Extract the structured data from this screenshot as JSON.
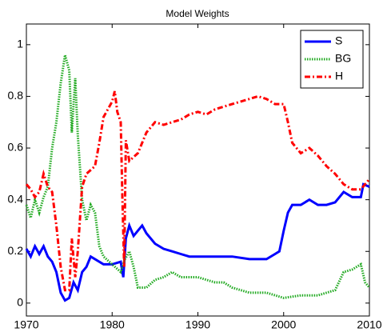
{
  "chart_data": {
    "type": "line",
    "title": "Model Weights",
    "xlim": [
      1970,
      2010
    ],
    "xticks": [
      1970,
      1980,
      1990,
      2000,
      2010
    ],
    "ylim": [
      -0.05,
      1.08
    ],
    "yticks": [
      0,
      0.2,
      0.4,
      0.6,
      0.8,
      1
    ],
    "legend": "northeast",
    "series": [
      {
        "name": "S",
        "color": "#0000ff",
        "style": "solid",
        "x": [
          1970,
          1970.5,
          1971,
          1971.5,
          1972,
          1972.5,
          1973,
          1973.5,
          1974,
          1974.5,
          1975,
          1975.5,
          1976,
          1976.5,
          1977,
          1977.5,
          1978,
          1979,
          1980,
          1981,
          1981.3,
          1981.6,
          1982,
          1982.5,
          1983,
          1983.5,
          1984,
          1985,
          1986,
          1987,
          1988,
          1989,
          1990,
          1992,
          1994,
          1996,
          1998,
          1999,
          1999.5,
          2000,
          2000.5,
          2001,
          2002,
          2003,
          2004,
          2005,
          2006,
          2007,
          2008,
          2009,
          2009.3,
          2010
        ],
        "values": [
          0.21,
          0.18,
          0.22,
          0.19,
          0.22,
          0.18,
          0.16,
          0.12,
          0.04,
          0.01,
          0.02,
          0.08,
          0.05,
          0.12,
          0.14,
          0.18,
          0.17,
          0.15,
          0.15,
          0.16,
          0.1,
          0.25,
          0.3,
          0.26,
          0.28,
          0.3,
          0.27,
          0.23,
          0.21,
          0.2,
          0.19,
          0.18,
          0.18,
          0.18,
          0.18,
          0.17,
          0.17,
          0.19,
          0.2,
          0.28,
          0.35,
          0.38,
          0.38,
          0.4,
          0.38,
          0.38,
          0.39,
          0.43,
          0.41,
          0.41,
          0.46,
          0.45
        ]
      },
      {
        "name": "BG",
        "color": "#22aa22",
        "style": "dotted",
        "x": [
          1970,
          1970.5,
          1971,
          1971.5,
          1972,
          1972.5,
          1973,
          1973.5,
          1974,
          1974.5,
          1975,
          1975.3,
          1975.7,
          1976,
          1976.5,
          1977,
          1977.5,
          1978,
          1978.5,
          1979,
          1980,
          1981,
          1981.5,
          1982,
          1982.5,
          1983,
          1984,
          1985,
          1986,
          1987,
          1988,
          1989,
          1990,
          1991,
          1992,
          1993,
          1994,
          1996,
          1998,
          2000,
          2002,
          2004,
          2006,
          2007,
          2008,
          2009,
          2009.5,
          2010
        ],
        "values": [
          0.38,
          0.33,
          0.4,
          0.35,
          0.41,
          0.45,
          0.6,
          0.7,
          0.85,
          0.96,
          0.9,
          0.66,
          0.87,
          0.65,
          0.4,
          0.32,
          0.38,
          0.35,
          0.22,
          0.18,
          0.15,
          0.12,
          0.17,
          0.2,
          0.14,
          0.06,
          0.06,
          0.09,
          0.1,
          0.12,
          0.1,
          0.1,
          0.1,
          0.09,
          0.08,
          0.08,
          0.06,
          0.04,
          0.04,
          0.02,
          0.03,
          0.03,
          0.05,
          0.12,
          0.13,
          0.15,
          0.08,
          0.06
        ]
      },
      {
        "name": "H",
        "color": "#ff0000",
        "style": "dashdot",
        "x": [
          1970,
          1970.5,
          1971,
          1971.5,
          1972,
          1972.5,
          1973,
          1973.5,
          1974,
          1974.5,
          1975,
          1975.3,
          1975.7,
          1976,
          1976.5,
          1977,
          1978,
          1978.5,
          1979,
          1980,
          1980.3,
          1980.6,
          1981,
          1981.2,
          1981.4,
          1981.6,
          1982,
          1983,
          1984,
          1985,
          1986,
          1987,
          1988,
          1989,
          1990,
          1991,
          1992,
          1994,
          1996,
          1997,
          1998,
          1999,
          2000,
          2000.5,
          2001,
          2002,
          2003,
          2004,
          2005,
          2006,
          2007,
          2008,
          2009,
          2010
        ],
        "values": [
          0.46,
          0.44,
          0.41,
          0.43,
          0.5,
          0.45,
          0.43,
          0.3,
          0.14,
          0.05,
          0.05,
          0.25,
          0.1,
          0.2,
          0.45,
          0.5,
          0.53,
          0.62,
          0.72,
          0.78,
          0.82,
          0.74,
          0.7,
          0.4,
          0.14,
          0.63,
          0.55,
          0.58,
          0.66,
          0.7,
          0.69,
          0.7,
          0.71,
          0.73,
          0.74,
          0.73,
          0.75,
          0.77,
          0.79,
          0.8,
          0.79,
          0.77,
          0.77,
          0.7,
          0.62,
          0.58,
          0.6,
          0.57,
          0.53,
          0.5,
          0.46,
          0.44,
          0.44,
          0.48
        ]
      }
    ]
  }
}
